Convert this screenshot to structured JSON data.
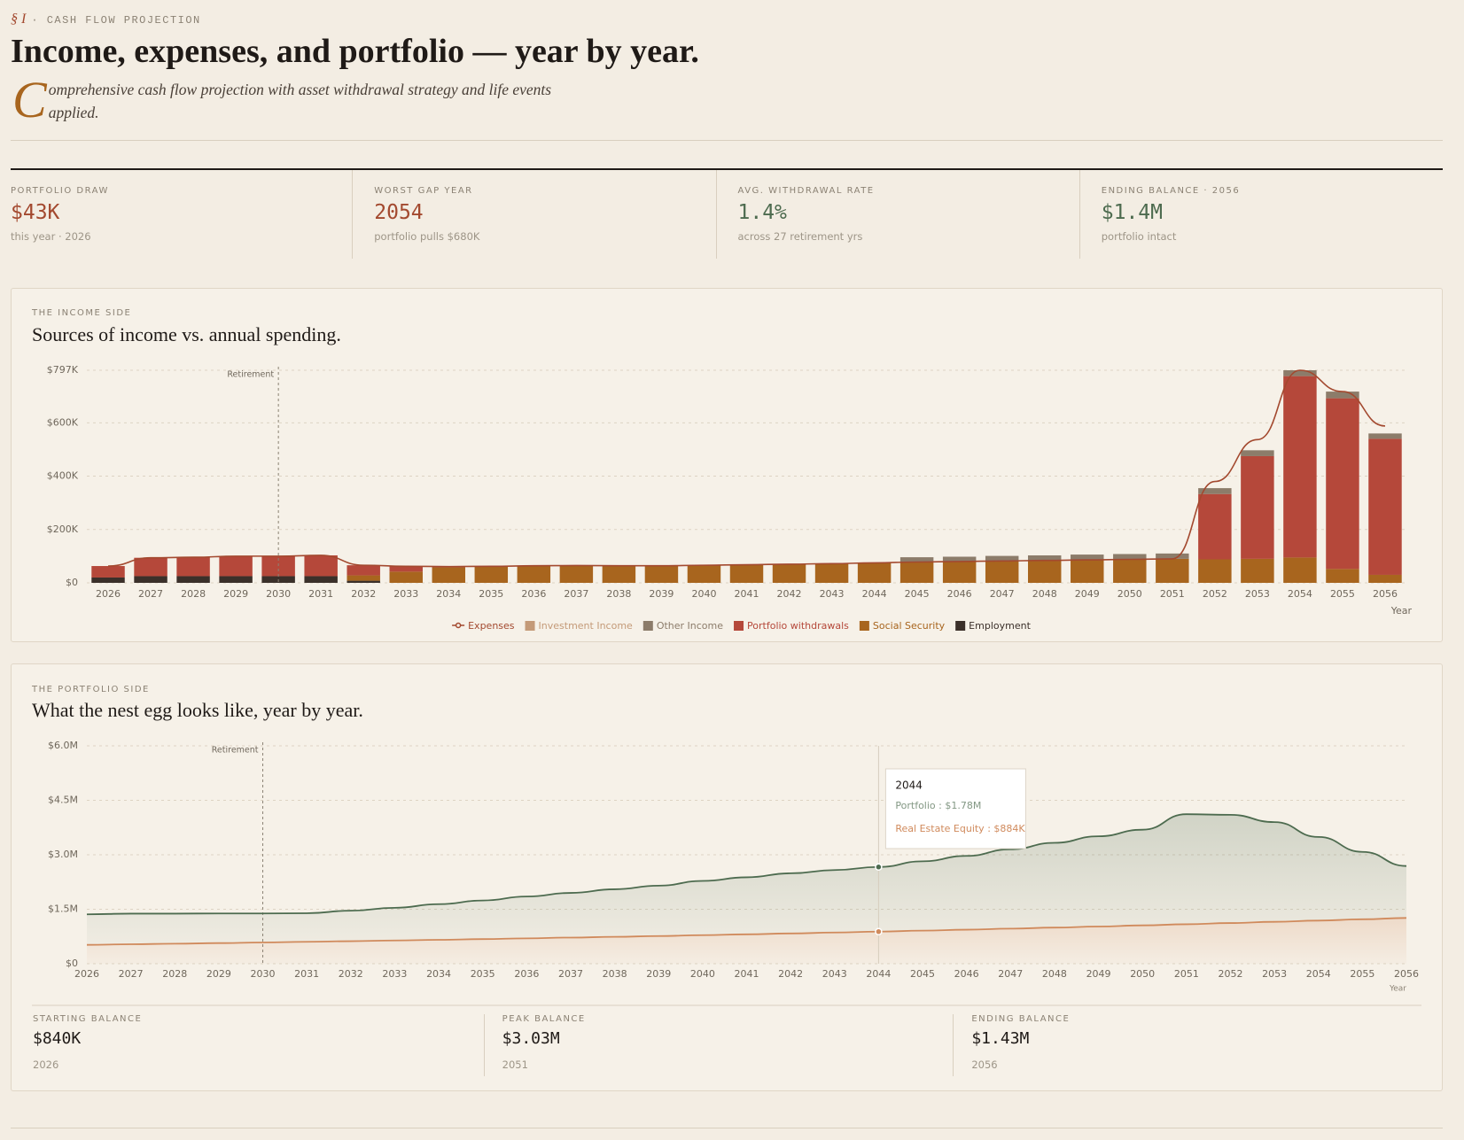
{
  "header": {
    "section": "§ I",
    "eyebrow": "· CASH FLOW PROJECTION",
    "title": "Income, expenses, and portfolio — year by year.",
    "dropcap": "C",
    "subtitle": "omprehensive cash flow projection with asset withdrawal strategy and life events applied."
  },
  "stats": [
    {
      "label": "PORTFOLIO DRAW",
      "value": "$43K",
      "note": "this year · 2026",
      "color": "#a3492f"
    },
    {
      "label": "WORST GAP YEAR",
      "value": "2054",
      "note": "portfolio pulls $680K",
      "color": "#a3492f"
    },
    {
      "label": "AVG. WITHDRAWAL RATE",
      "value": "1.4%",
      "note": "across 27 retirement yrs",
      "color": "#4d6b4f"
    },
    {
      "label": "ENDING BALANCE · 2056",
      "value": "$1.4M",
      "note": "portfolio intact",
      "color": "#4d6b4f"
    }
  ],
  "summary": [
    {
      "label": "STARTING BALANCE",
      "value": "$840K",
      "note": "2026"
    },
    {
      "label": "PEAK BALANCE",
      "value": "$3.03M",
      "note": "2051"
    },
    {
      "label": "ENDING BALANCE",
      "value": "$1.43M",
      "note": "2056"
    }
  ],
  "chart_data": [
    {
      "type": "bar",
      "eyebrow": "THE INCOME SIDE",
      "title": "Sources of income vs. annual spending.",
      "x_label": "Year",
      "categories": [
        "2026",
        "2027",
        "2028",
        "2029",
        "2030",
        "2031",
        "2032",
        "2033",
        "2034",
        "2035",
        "2036",
        "2037",
        "2038",
        "2039",
        "2040",
        "2041",
        "2042",
        "2043",
        "2044",
        "2045",
        "2046",
        "2047",
        "2048",
        "2049",
        "2050",
        "2051",
        "2052",
        "2053",
        "2054",
        "2055",
        "2056"
      ],
      "series": [
        {
          "name": "Expenses",
          "type": "line",
          "color": "#a3492f",
          "values": [
            63000,
            94000,
            96000,
            100000,
            100000,
            103000,
            66000,
            62000,
            61000,
            62000,
            64000,
            65000,
            64000,
            64000,
            66000,
            68000,
            70000,
            72000,
            75000,
            78000,
            80000,
            82000,
            84000,
            86000,
            88000,
            90000,
            380000,
            537000,
            797000,
            717000,
            588000
          ]
        },
        {
          "name": "Investment Income",
          "type": "bar",
          "color": "#c49a78",
          "values": [
            0,
            0,
            0,
            0,
            0,
            0,
            0,
            0,
            0,
            0,
            0,
            0,
            0,
            0,
            0,
            0,
            0,
            0,
            0,
            0,
            0,
            0,
            0,
            0,
            0,
            0,
            0,
            0,
            0,
            0,
            0
          ]
        },
        {
          "name": "Other Income",
          "type": "bar",
          "color": "#8c7c6a",
          "values": [
            0,
            0,
            0,
            0,
            0,
            0,
            0,
            0,
            0,
            0,
            0,
            0,
            0,
            0,
            0,
            0,
            0,
            0,
            0,
            18000,
            18000,
            19000,
            19000,
            20000,
            20000,
            20000,
            22000,
            22000,
            22000,
            25000,
            20000
          ]
        },
        {
          "name": "Portfolio withdrawals",
          "type": "bar",
          "color": "#b5483a",
          "values": [
            43000,
            69000,
            71000,
            75000,
            75000,
            78000,
            38000,
            20000,
            3000,
            0,
            0,
            0,
            0,
            0,
            0,
            0,
            0,
            0,
            0,
            0,
            0,
            0,
            0,
            0,
            0,
            0,
            245000,
            385000,
            680000,
            640000,
            510000
          ]
        },
        {
          "name": "Social Security",
          "type": "bar",
          "color": "#a8651e",
          "values": [
            0,
            0,
            0,
            0,
            0,
            0,
            20000,
            42000,
            58000,
            62000,
            64000,
            65000,
            63000,
            64000,
            66000,
            68000,
            70000,
            72000,
            75000,
            78000,
            80000,
            82000,
            84000,
            86000,
            88000,
            90000,
            88000,
            90000,
            95000,
            52000,
            30000
          ]
        },
        {
          "name": "Employment",
          "type": "bar",
          "color": "#3b302a",
          "values": [
            20000,
            25000,
            25000,
            25000,
            25000,
            25000,
            8000,
            0,
            0,
            0,
            0,
            0,
            0,
            0,
            0,
            0,
            0,
            0,
            0,
            0,
            0,
            0,
            0,
            0,
            0,
            0,
            0,
            0,
            0,
            0,
            0
          ]
        }
      ],
      "ylim": [
        0,
        797000
      ],
      "yticks": [
        {
          "value": 0,
          "label": "$0"
        },
        {
          "value": 200000,
          "label": "$200K"
        },
        {
          "value": 400000,
          "label": "$400K"
        },
        {
          "value": 600000,
          "label": "$600K"
        },
        {
          "value": 797000,
          "label": "$797K"
        }
      ],
      "grid": true,
      "legend": "bottom",
      "annotations": [
        {
          "label": "Retirement",
          "x": "2030"
        }
      ]
    },
    {
      "type": "area",
      "eyebrow": "THE PORTFOLIO SIDE",
      "title": "What the nest egg looks like, year by year.",
      "x_label": "Year",
      "categories": [
        "2026",
        "2027",
        "2028",
        "2029",
        "2030",
        "2031",
        "2032",
        "2033",
        "2034",
        "2035",
        "2036",
        "2037",
        "2038",
        "2039",
        "2040",
        "2041",
        "2042",
        "2043",
        "2044",
        "2045",
        "2046",
        "2047",
        "2048",
        "2049",
        "2050",
        "2051",
        "2052",
        "2053",
        "2054",
        "2055",
        "2056"
      ],
      "series": [
        {
          "name": "Portfolio",
          "color": "#4d6b4f",
          "values": [
            840000,
            844000,
            828000,
            817000,
            800000,
            787000,
            839000,
            900000,
            981000,
            1062000,
            1151000,
            1230000,
            1309000,
            1387000,
            1494000,
            1570000,
            1656000,
            1720000,
            1780000,
            1909000,
            2032000,
            2184000,
            2335000,
            2485000,
            2634000,
            3030000,
            2980000,
            2746000,
            2302000,
            1856000,
            1430000
          ]
        },
        {
          "name": "Real Estate Equity",
          "color": "#d08a5c",
          "values": [
            520000,
            536000,
            552000,
            568000,
            585000,
            603000,
            621000,
            640000,
            659000,
            678000,
            699000,
            720000,
            741000,
            763000,
            786000,
            810000,
            834000,
            859000,
            884000,
            911000,
            938000,
            966000,
            995000,
            1025000,
            1056000,
            1087000,
            1120000,
            1154000,
            1188000,
            1224000,
            1261000
          ]
        }
      ],
      "stacked": true,
      "ylim": [
        0,
        6000000
      ],
      "yticks": [
        {
          "value": 0,
          "label": "$0"
        },
        {
          "value": 1500000,
          "label": "$1.5M"
        },
        {
          "value": 3000000,
          "label": "$3.0M"
        },
        {
          "value": 4500000,
          "label": "$4.5M"
        },
        {
          "value": 6000000,
          "label": "$6.0M"
        }
      ],
      "grid": true,
      "annotations": [
        {
          "label": "Retirement",
          "x": "2030"
        }
      ],
      "tooltip": {
        "title": "2044",
        "lines": [
          "Portfolio : $1.78M",
          "Real Estate Equity : $884K"
        ]
      }
    }
  ]
}
